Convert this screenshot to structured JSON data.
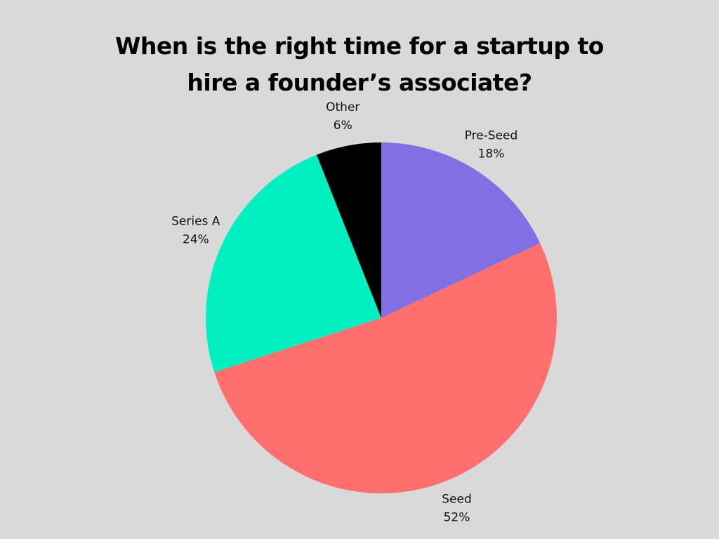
{
  "chart_data": {
    "type": "pie",
    "title": "When is the right time for a startup to hire a founder’s associate?",
    "categories": [
      "Pre-Seed",
      "Seed",
      "Series A",
      "Other"
    ],
    "values": [
      18,
      52,
      24,
      6
    ],
    "value_labels": [
      "18%",
      "52%",
      "24%",
      "6%"
    ],
    "colors": [
      "#836fe4",
      "#ff6f6e",
      "#00f0c0",
      "#000000"
    ]
  }
}
